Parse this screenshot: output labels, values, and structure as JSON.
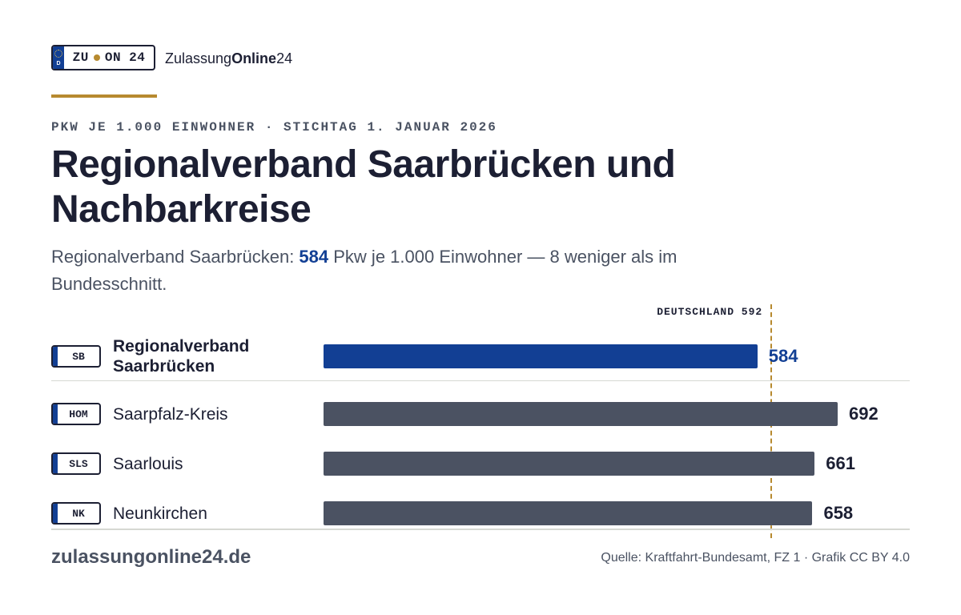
{
  "logo": {
    "plate_left": "ZU",
    "plate_right": "ON 24",
    "plate_country": "D",
    "brand_regular": "Zulassung",
    "brand_bold": "Online",
    "brand_suffix": "24"
  },
  "header": {
    "kicker": "PKW JE 1.000 EINWOHNER · STICHTAG 1. JANUAR 2026",
    "title": "Regionalverband Saarbrücken und Nachbarkreise",
    "subtitle_prefix": "Regionalverband Saarbrücken: ",
    "subtitle_value": "584",
    "subtitle_suffix": " Pkw je 1.000 Einwohner — 8 weniger als im Bundesschnitt."
  },
  "chart_data": {
    "type": "bar",
    "orientation": "horizontal",
    "categories": [
      "Regionalverband Saarbrücken",
      "Saarpfalz-Kreis",
      "Saarlouis",
      "Neunkirchen"
    ],
    "plates": [
      "SB",
      "HOM",
      "SLS",
      "NK"
    ],
    "values": [
      584,
      692,
      661,
      658
    ],
    "value_labels": [
      "584",
      "692",
      "661",
      "658"
    ],
    "highlight_index": 0,
    "reference": {
      "label": "DEUTSCHLAND 592",
      "value": 592
    },
    "xlim": [
      0,
      692
    ],
    "colors": {
      "highlight": "#123f94",
      "default": "#4b5262",
      "reference": "#b78a2f"
    }
  },
  "footer": {
    "site": "zulassungonline24.de",
    "source": "Quelle: Kraftfahrt-Bundesamt, FZ 1 · Grafik CC BY 4.0"
  }
}
